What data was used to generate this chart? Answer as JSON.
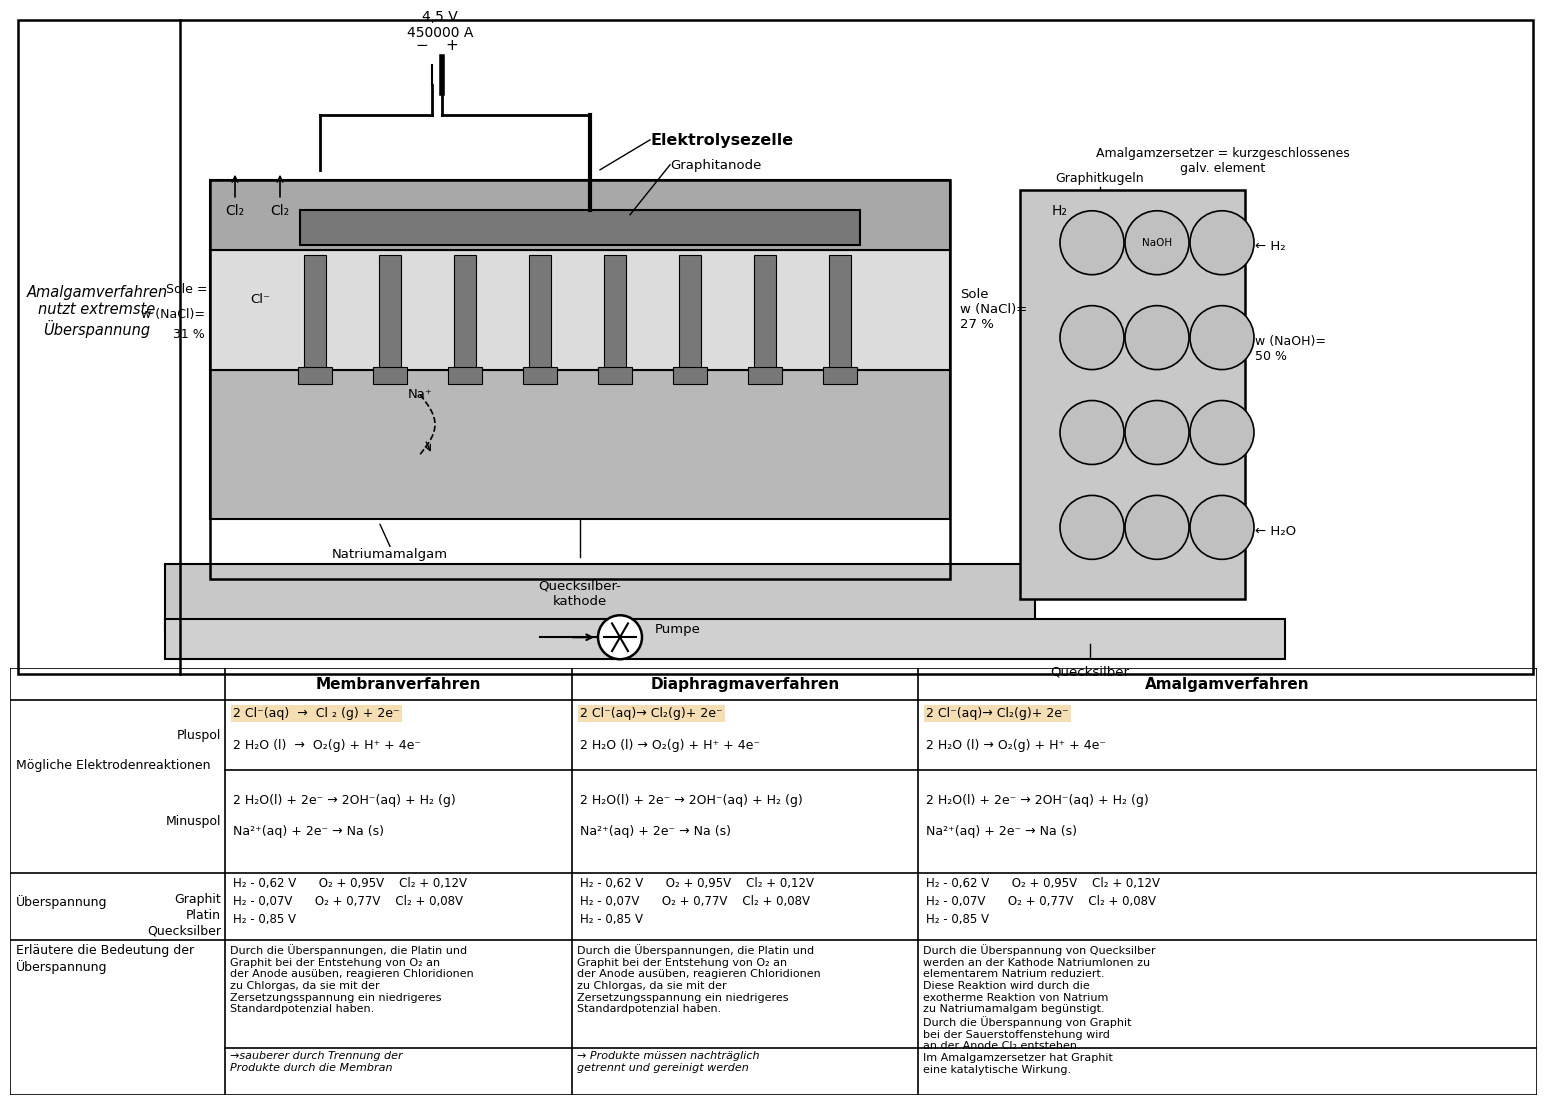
{
  "bg_color": "#ffffff",
  "diagram_label_left": "Amalgamverfahren\nnutzt extremste\nÜberspannung",
  "diagram_voltage": "4,5 V\n450000 A",
  "diagram_graphitanode": "Graphitanode",
  "diagram_graphitkugeln": "Graphitkugeln",
  "diagram_sole_in_label": "Sole =",
  "diagram_sole_in_conc": "w (NaCl)=\n31 %",
  "diagram_sole_out": "Sole\nw (NaCl)=\n27 %",
  "diagram_natriumamalgam": "Natriumamalgam",
  "diagram_quecksilber_kathode": "Quecksilber-\nkathode",
  "diagram_quecksilber": "Quecksilber",
  "diagram_pumpe": "Pumpe",
  "diagram_wNaOH": "w (NaOH)=\n50 %",
  "diagram_title_elektrolysezelle": "Elektrolysezelle",
  "diagram_title_amalgamzersetzer": "Amalgamzersetzer = kurzgeschlossenes\ngalv. element",
  "table_header_col2": "Membranverfahren",
  "table_header_col3": "Diaphragmaverfahren",
  "table_header_col4": "Amalgamverfahren",
  "row1_label": "Mögliche Elektrodenreaktionen",
  "row1_sub_pluspol": "Pluspol",
  "row1_sub_minuspol": "Minuspol",
  "row3_label": "Überspannung",
  "row3_graphit": "Graphit",
  "row3_platin": "Platin",
  "row3_quecksilber": "Quecksilber",
  "row4_label": "Erläutere die Bedeutung der\nÜberspannung",
  "uberspannung_graphit": "H₂ - 0,62 V      O₂ + 0,95V    Cl₂ + 0,12V",
  "uberspannung_platin": "H₂ - 0,07V      O₂ + 0,77V    Cl₂ + 0,08V",
  "uberspannung_quecksilber": "H₂ - 0,85 V",
  "pluspol_membran_l1": "2 Cl⁻(aq)  →  Cl ₂ (g) + 2e⁻",
  "pluspol_membran_l2": "2 H₂O (l)  →  O₂(g) + H⁺ + 4e⁻",
  "pluspol_diaphragma_l1": "2 Cl⁻(aq)→ Cl₂(g)+ 2e⁻",
  "pluspol_diaphragma_l2": "2 H₂O (l) → O₂(g) + H⁺ + 4e⁻",
  "pluspol_amalgam_l1": "2 Cl⁻(aq)→ Cl₂(g)+ 2e⁻",
  "pluspol_amalgam_l2": "2 H₂O (l) → O₂(g) + H⁺ + 4e⁻",
  "minuspol_l1": "2 H₂O(l) + 2e⁻ → 2OH⁻(aq) + H₂ (g)",
  "minuspol_l2": "Na²⁺(aq) + 2e⁻ → Na (s)",
  "row4_membran_text": "Durch die Überspannungen, die Platin und\nGraphit bei der Entstehung von O₂ an\nder Anode ausüben, reagieren Chloridionen\nzu Chlorgas, da sie mit der\nZersetzungsspannung ein niedrigeres\nStandardpotenzial haben.",
  "row4_membran_note": "→sauberer durch Trennung der\nProdukte durch die Membran",
  "row4_diaphragma_text": "Durch die Überspannungen, die Platin und\nGraphit bei der Entstehung von O₂ an\nder Anode ausüben, reagieren Chloridionen\nzu Chlorgas, da sie mit der\nZersetzungsspannung ein niedrigeres\nStandardpotenzial haben.",
  "row4_diaphragma_note": "→ Produkte müssen nachträglich\ngetrennt und gereinigt werden",
  "row4_amalgam_text": "Durch die Überspannung von Quecksilber\nwerden an der Kathode Natriumlonen zu\nelementarem Natrium reduziert.\nDiese Reaktion wird durch die\nexotherme Reaktion von Natrium\nzu Natriumamalgam begünstigt.\nDurch die Überspannung von Graphit\nbei der Sauerstoffenstehung wird\nan der Anode Cl₂ entstehen.\nIm Amalgamzersetzer hat Graphit\neine katalytische Wirkung.",
  "highlight_color": "#f5deb3"
}
